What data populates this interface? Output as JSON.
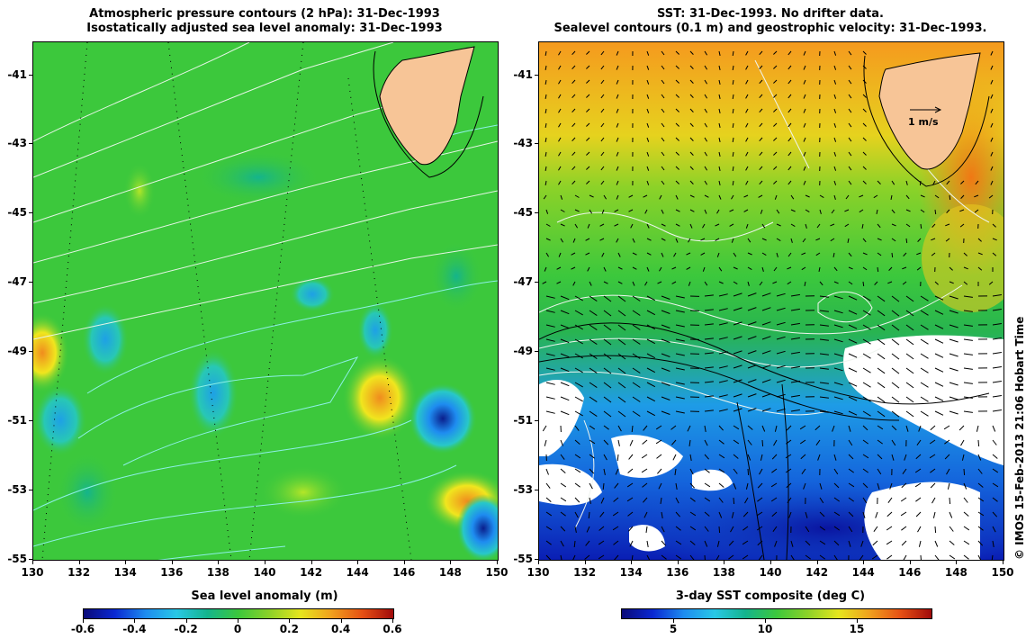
{
  "left_panel": {
    "title_line1": "Atmospheric pressure contours (2 hPa): 31-Dec-1993",
    "title_line2": "Isostatically adjusted sea level anomaly: 31-Dec-1993",
    "colorbar_label": "Sea level anomaly (m)",
    "colorbar_ticks": [
      "-0.6",
      "-0.4",
      "-0.2",
      "0",
      "0.2",
      "0.4",
      "0.6"
    ]
  },
  "right_panel": {
    "title_line1": "SST: 31-Dec-1993. No drifter data.",
    "title_line2": "Sealevel contours (0.1 m) and geostrophic velocity: 31-Dec-1993.",
    "scale_arrow_label": "1 m/s",
    "colorbar_label": "3-day SST composite (deg C)",
    "colorbar_ticks": [
      "5",
      "10",
      "15"
    ]
  },
  "axes": {
    "lat_ticks": [
      "-41",
      "-43",
      "-45",
      "-47",
      "-49",
      "-51",
      "-53",
      "-55"
    ],
    "lon_ticks": [
      "130",
      "132",
      "134",
      "136",
      "138",
      "140",
      "142",
      "144",
      "146",
      "148",
      "150"
    ]
  },
  "credit": "© IMOS 15-Feb-2013 21:06 Hobart Time",
  "colors": {
    "land": "#f7c597",
    "ocean_green": "#3cc83c",
    "sst_orange": "#f5a623",
    "sst_blue": "#1a7ff0",
    "sst_deep": "#1028c8"
  }
}
